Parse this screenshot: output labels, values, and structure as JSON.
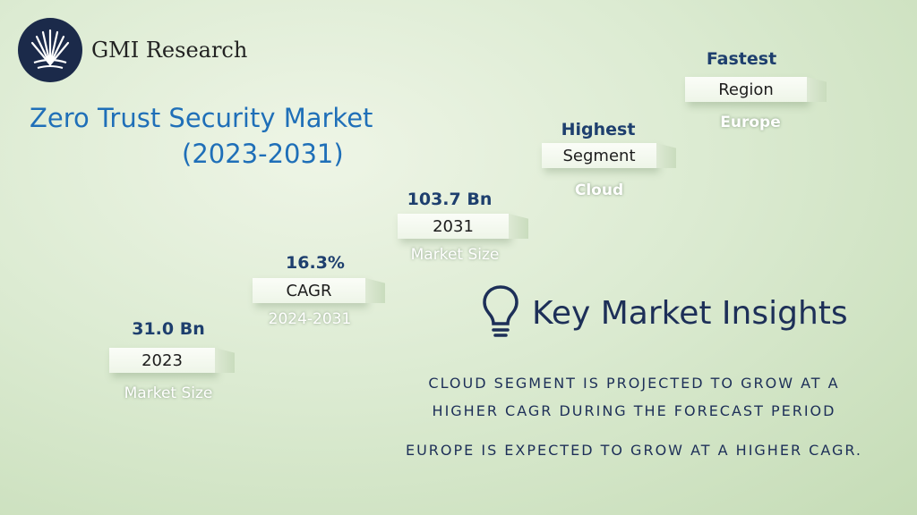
{
  "brand": {
    "name": "GMI Research"
  },
  "title": {
    "line1": "Zero Trust Security Market",
    "line2": "(2023-2031)"
  },
  "steps": [
    {
      "top": "31.0 Bn",
      "label": "2023",
      "below": "Market Size"
    },
    {
      "top": "16.3%",
      "label": "CAGR",
      "below": "2024-2031"
    },
    {
      "top": "103.7 Bn",
      "label": "2031",
      "below": "Market Size"
    },
    {
      "top": "Highest",
      "label": "Segment",
      "below": "Cloud"
    },
    {
      "top": "Fastest",
      "label": "Region",
      "below": "Europe"
    }
  ],
  "insights": {
    "heading": "Key Market Insights",
    "statement1_line1": "CLOUD SEGMENT IS PROJECTED TO GROW AT A",
    "statement1_line2": "HIGHER CAGR DURING THE FORECAST PERIOD",
    "statement2": "EUROPE IS EXPECTED TO GROW AT A HIGHER CAGR."
  },
  "colors": {
    "title": "#1f6fb8",
    "dark": "#1d2f58",
    "step_top": "#1e3f6e",
    "logo_bg": "#1b2a4a"
  },
  "icons": {
    "logo": "palm-fan-logo-icon",
    "insights": "lightbulb-icon"
  }
}
